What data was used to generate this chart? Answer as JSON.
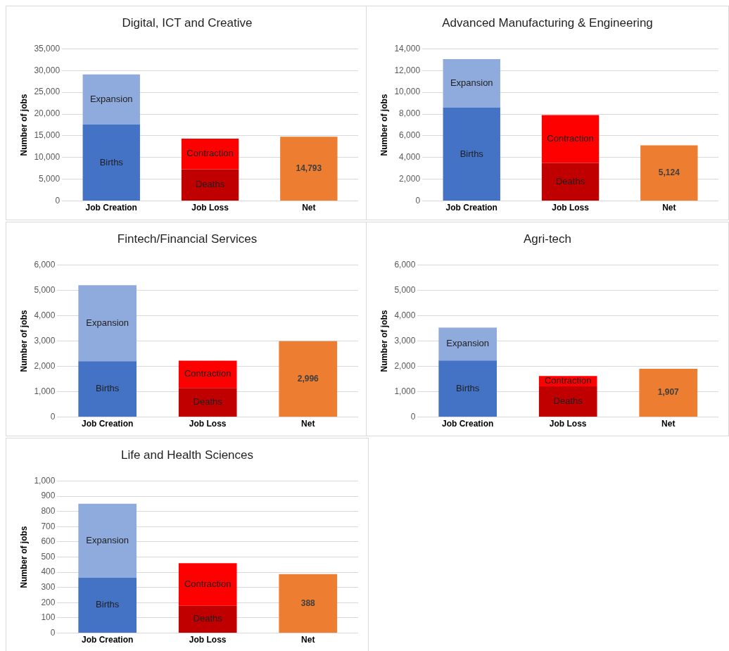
{
  "chart_data": [
    {
      "type": "bar",
      "title": "Digital, ICT and Creative",
      "ylabel": "Number of jobs",
      "categories": [
        "Job Creation",
        "Job Loss",
        "Net"
      ],
      "stacked": true,
      "grid": "y",
      "legend": false,
      "ylim": [
        0,
        35000
      ],
      "yticks": [
        0,
        {
          "value": 5000,
          "label": "5,000"
        },
        {
          "value": 10000,
          "label": "10,000"
        },
        {
          "value": 15000,
          "label": "15,000"
        },
        {
          "value": 20000,
          "label": "20,000"
        },
        {
          "value": 25000,
          "label": "25,000"
        },
        {
          "value": 30000,
          "label": "30,000"
        },
        {
          "value": 35000,
          "label": "35,000"
        }
      ],
      "series": [
        {
          "name": "Births",
          "color": "#4472c4",
          "values": [
            17600,
            null,
            null
          ]
        },
        {
          "name": "Expansion",
          "color": "#8faadc",
          "values": [
            11500,
            null,
            null
          ]
        },
        {
          "name": "Deaths",
          "color": "#c00000",
          "values": [
            null,
            7300,
            null
          ]
        },
        {
          "name": "Contraction",
          "color": "#ff0000",
          "values": [
            null,
            7050,
            null
          ]
        },
        {
          "color": "#ed7d31",
          "values": [
            null,
            null,
            14793
          ],
          "value_labels": [
            null,
            null,
            "14,793"
          ]
        }
      ]
    },
    {
      "type": "bar",
      "title": "Advanced Manufacturing & Engineering",
      "ylabel": "Number of jobs",
      "categories": [
        "Job Creation",
        "Job Loss",
        "Net"
      ],
      "stacked": true,
      "grid": "y",
      "legend": false,
      "ylim": [
        0,
        14000
      ],
      "yticks": [
        0,
        {
          "value": 2000,
          "label": "2,000"
        },
        {
          "value": 4000,
          "label": "4,000"
        },
        {
          "value": 6000,
          "label": "6,000"
        },
        {
          "value": 8000,
          "label": "8,000"
        },
        {
          "value": 10000,
          "label": "10,000"
        },
        {
          "value": 12000,
          "label": "12,000"
        },
        {
          "value": 14000,
          "label": "14,000"
        }
      ],
      "series": [
        {
          "name": "Births",
          "color": "#4472c4",
          "values": [
            8600,
            null,
            null
          ]
        },
        {
          "name": "Expansion",
          "color": "#8faadc",
          "values": [
            4450,
            null,
            null
          ]
        },
        {
          "name": "Deaths",
          "color": "#c00000",
          "values": [
            null,
            3500,
            null
          ]
        },
        {
          "name": "Contraction",
          "color": "#ff0000",
          "values": [
            null,
            4400,
            null
          ]
        },
        {
          "color": "#ed7d31",
          "values": [
            null,
            null,
            5124
          ],
          "value_labels": [
            null,
            null,
            "5,124"
          ]
        }
      ]
    },
    {
      "type": "bar",
      "title": "Fintech/Financial Services",
      "ylabel": "Number of jobs",
      "categories": [
        "Job Creation",
        "Job Loss",
        "Net"
      ],
      "stacked": true,
      "grid": "y",
      "legend": false,
      "ylim": [
        0,
        6000
      ],
      "yticks": [
        0,
        {
          "value": 1000,
          "label": "1,000"
        },
        {
          "value": 2000,
          "label": "2,000"
        },
        {
          "value": 3000,
          "label": "3,000"
        },
        {
          "value": 4000,
          "label": "4,000"
        },
        {
          "value": 5000,
          "label": "5,000"
        },
        {
          "value": 6000,
          "label": "6,000"
        }
      ],
      "series": [
        {
          "name": "Births",
          "color": "#4472c4",
          "values": [
            2200,
            null,
            null
          ]
        },
        {
          "name": "Expansion",
          "color": "#8faadc",
          "values": [
            3000,
            null,
            null
          ]
        },
        {
          "name": "Deaths",
          "color": "#c00000",
          "values": [
            null,
            1150,
            null
          ]
        },
        {
          "name": "Contraction",
          "color": "#ff0000",
          "values": [
            null,
            1070,
            null
          ]
        },
        {
          "color": "#ed7d31",
          "values": [
            null,
            null,
            2996
          ],
          "value_labels": [
            null,
            null,
            "2,996"
          ]
        }
      ]
    },
    {
      "type": "bar",
      "title": "Agri-tech",
      "ylabel": "Number of jobs",
      "categories": [
        "Job Creation",
        "Job Loss",
        "Net"
      ],
      "stacked": true,
      "grid": "y",
      "legend": false,
      "ylim": [
        0,
        6000
      ],
      "yticks": [
        0,
        {
          "value": 1000,
          "label": "1,000"
        },
        {
          "value": 2000,
          "label": "2,000"
        },
        {
          "value": 3000,
          "label": "3,000"
        },
        {
          "value": 4000,
          "label": "4,000"
        },
        {
          "value": 5000,
          "label": "5,000"
        },
        {
          "value": 6000,
          "label": "6,000"
        }
      ],
      "series": [
        {
          "name": "Births",
          "color": "#4472c4",
          "values": [
            2230,
            null,
            null
          ]
        },
        {
          "name": "Expansion",
          "color": "#8faadc",
          "values": [
            1300,
            null,
            null
          ]
        },
        {
          "name": "Deaths",
          "color": "#c00000",
          "values": [
            null,
            1210,
            null
          ]
        },
        {
          "name": "Contraction",
          "color": "#ff0000",
          "values": [
            null,
            410,
            null
          ]
        },
        {
          "color": "#ed7d31",
          "values": [
            null,
            null,
            1907
          ],
          "value_labels": [
            null,
            null,
            "1,907"
          ]
        }
      ]
    },
    {
      "type": "bar",
      "title": "Life and Health Sciences",
      "ylabel": "Number of jobs",
      "categories": [
        "Job Creation",
        "Job Loss",
        "Net"
      ],
      "stacked": true,
      "grid": "y",
      "legend": false,
      "ylim": [
        0,
        1000
      ],
      "yticks": [
        0,
        100,
        200,
        300,
        400,
        500,
        600,
        700,
        800,
        900,
        {
          "value": 1000,
          "label": "1,000"
        }
      ],
      "series": [
        {
          "name": "Births",
          "color": "#4472c4",
          "values": [
            365,
            null,
            null
          ]
        },
        {
          "name": "Expansion",
          "color": "#8faadc",
          "values": [
            485,
            null,
            null
          ]
        },
        {
          "name": "Deaths",
          "color": "#c00000",
          "values": [
            null,
            180,
            null
          ]
        },
        {
          "name": "Contraction",
          "color": "#ff0000",
          "values": [
            null,
            280,
            null
          ]
        },
        {
          "color": "#ed7d31",
          "values": [
            null,
            null,
            388
          ],
          "value_labels": [
            null,
            null,
            "388"
          ]
        }
      ]
    }
  ]
}
